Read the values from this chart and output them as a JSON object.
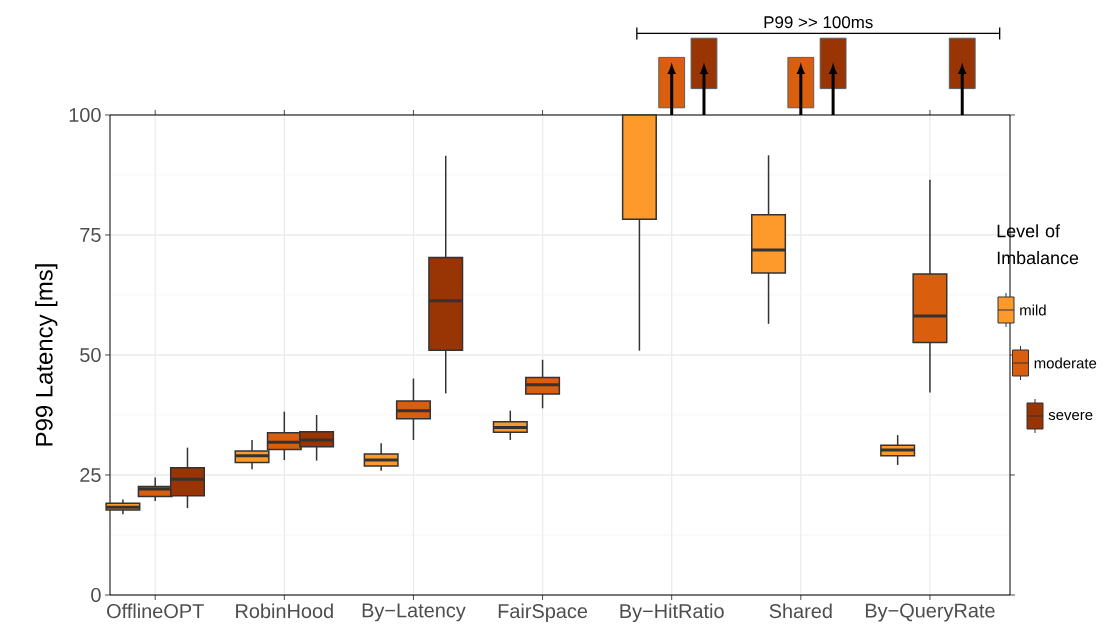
{
  "chart_data": {
    "type": "box",
    "ylabel": "P99 Latency [ms]",
    "legend_title": "Level of Imbalance",
    "annotations": [
      "P99 >> 100ms"
    ],
    "categories": [
      "OfflineOPT",
      "RobinHood",
      "By−Latency",
      "FairSpace",
      "By−HitRatio",
      "Shared",
      "By−QueryRate"
    ],
    "series": [
      {
        "name": "mild",
        "color": "#fd9a2b",
        "boxes": [
          {
            "low": 16.8,
            "q1": 17.7,
            "median": 18.3,
            "q3": 19.1,
            "high": 19.9
          },
          {
            "low": 26.2,
            "q1": 27.6,
            "median": 29.0,
            "q3": 30.0,
            "high": 32.3
          },
          {
            "low": 25.9,
            "q1": 26.9,
            "median": 28.1,
            "q3": 29.4,
            "high": 31.6
          },
          {
            "low": 32.3,
            "q1": 33.9,
            "median": 34.9,
            "q3": 36.1,
            "high": 38.4
          },
          {
            "low": 50.9,
            "q1": 78.3,
            "median": null,
            "q3": 100,
            "high": null
          },
          {
            "low": 56.5,
            "q1": 67.1,
            "median": 71.9,
            "q3": 79.2,
            "high": 91.6
          },
          {
            "low": 27.1,
            "q1": 29.0,
            "median": 30.2,
            "q3": 31.2,
            "high": 33.3
          }
        ]
      },
      {
        "name": "moderate",
        "color": "#d95f0e",
        "boxes": [
          {
            "low": 19.6,
            "q1": 20.5,
            "median": 22.1,
            "q3": 22.6,
            "high": 24.5
          },
          {
            "low": 28.1,
            "q1": 30.3,
            "median": 31.8,
            "q3": 33.8,
            "high": 38.2
          },
          {
            "low": 32.3,
            "q1": 36.7,
            "median": 38.4,
            "q3": 40.4,
            "high": 45.1
          },
          {
            "low": 38.9,
            "q1": 41.9,
            "median": 43.8,
            "q3": 45.3,
            "high": 49.0
          },
          null,
          null,
          {
            "low": 42.2,
            "q1": 52.6,
            "median": 58.1,
            "q3": 66.9,
            "high": 86.5
          }
        ]
      },
      {
        "name": "severe",
        "color": "#993404",
        "boxes": [
          {
            "low": 18.1,
            "q1": 20.7,
            "median": 24.1,
            "q3": 26.5,
            "high": 30.7
          },
          {
            "low": 28.0,
            "q1": 30.9,
            "median": 32.3,
            "q3": 34.0,
            "high": 37.5
          },
          {
            "low": 42.0,
            "q1": 51.0,
            "median": 61.3,
            "q3": 70.3,
            "high": 91.5
          },
          null,
          null,
          null,
          null
        ]
      }
    ],
    "ylim": [
      0,
      100
    ],
    "yticks": [
      0,
      25,
      50,
      75,
      100
    ],
    "grid": true,
    "legend": "right"
  }
}
